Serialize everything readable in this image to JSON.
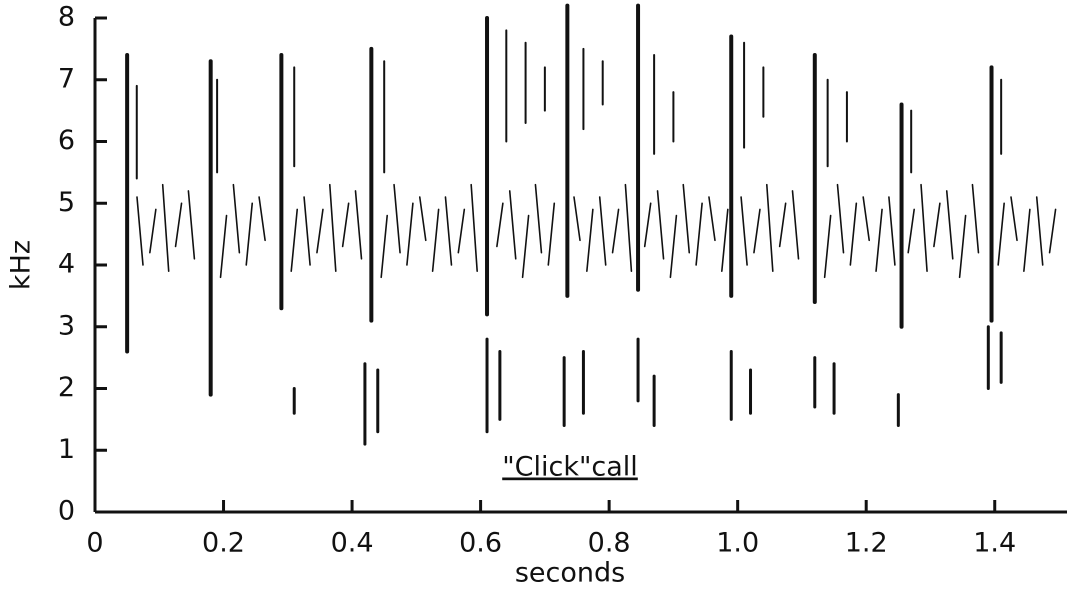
{
  "chart_data": {
    "type": "spectrogram",
    "xlabel": "seconds",
    "ylabel": "kHz",
    "annotation": "\"Click\"call",
    "xlim": [
      0,
      1.5
    ],
    "ylim": [
      0,
      8
    ],
    "xticks": [
      0,
      0.2,
      0.4,
      0.6,
      0.8,
      {
        "value": 1,
        "label": "1.0"
      },
      1.2,
      1.4
    ],
    "yticks": [
      0,
      1,
      2,
      3,
      4,
      5,
      6,
      7,
      8
    ],
    "color": "#111111",
    "series": [
      {
        "x": [
          0.05,
          0.18,
          0.29,
          0.43,
          0.61,
          0.735,
          0.845,
          0.99,
          1.12,
          1.255,
          1.395
        ],
        "low": [
          2.6,
          1.9,
          3.3,
          3.1,
          3.2,
          3.5,
          3.6,
          3.5,
          3.4,
          3.0,
          3.1
        ],
        "high": [
          7.4,
          7.3,
          7.4,
          7.5,
          8.0,
          8.2,
          8.2,
          7.7,
          7.4,
          6.6,
          7.2
        ]
      },
      {
        "x": [
          0.05,
          0.18,
          0.31,
          0.42,
          0.44,
          0.61,
          0.63,
          0.73,
          0.76,
          0.845,
          0.87,
          0.99,
          1.02,
          1.12,
          1.15,
          1.25,
          1.39,
          1.41
        ],
        "low": [
          2.7,
          1.9,
          1.6,
          1.1,
          1.3,
          1.3,
          1.5,
          1.4,
          1.6,
          1.8,
          1.4,
          1.5,
          1.6,
          1.7,
          1.6,
          1.4,
          2.0,
          2.1
        ],
        "high": [
          3.2,
          2.8,
          2.0,
          2.4,
          2.3,
          2.8,
          2.6,
          2.5,
          2.6,
          2.8,
          2.2,
          2.6,
          2.3,
          2.5,
          2.4,
          1.9,
          3.0,
          2.9
        ]
      },
      {
        "x": [
          0.065,
          0.19,
          0.31,
          0.45,
          0.64,
          0.67,
          0.7,
          0.76,
          0.79,
          0.87,
          0.9,
          1.01,
          1.04,
          1.14,
          1.17,
          1.27,
          1.41
        ],
        "low": [
          5.4,
          5.5,
          5.6,
          5.5,
          6.0,
          6.3,
          6.5,
          6.2,
          6.6,
          5.8,
          6.0,
          5.9,
          6.4,
          5.6,
          6.0,
          5.5,
          5.8
        ],
        "high": [
          6.9,
          7.0,
          7.2,
          7.3,
          7.8,
          7.6,
          7.2,
          7.5,
          7.3,
          7.4,
          6.8,
          7.6,
          7.2,
          7.0,
          6.8,
          6.5,
          7.0
        ]
      },
      {
        "x": [
          0.07,
          0.09,
          0.11,
          0.13,
          0.15,
          0.2,
          0.22,
          0.24,
          0.26,
          0.31,
          0.33,
          0.35,
          0.37,
          0.39,
          0.41,
          0.45,
          0.47,
          0.49,
          0.51,
          0.53,
          0.55,
          0.57,
          0.59,
          0.63,
          0.65,
          0.67,
          0.69,
          0.71,
          0.75,
          0.77,
          0.79,
          0.81,
          0.83,
          0.86,
          0.88,
          0.9,
          0.92,
          0.94,
          0.96,
          0.98,
          1.01,
          1.03,
          1.05,
          1.07,
          1.09,
          1.14,
          1.16,
          1.18,
          1.2,
          1.22,
          1.24,
          1.27,
          1.29,
          1.31,
          1.33,
          1.35,
          1.37,
          1.41,
          1.43,
          1.45,
          1.47,
          1.49
        ],
        "low": [
          4.0,
          4.2,
          3.9,
          4.3,
          4.1,
          3.8,
          4.2,
          4.0,
          4.4,
          3.9,
          4.0,
          4.2,
          3.9,
          4.3,
          4.1,
          3.8,
          4.2,
          4.0,
          4.4,
          3.9,
          4.0,
          4.2,
          3.9,
          4.3,
          4.1,
          3.8,
          4.2,
          4.0,
          4.4,
          3.9,
          4.0,
          4.2,
          3.9,
          4.3,
          4.1,
          3.8,
          4.2,
          4.0,
          4.4,
          3.9,
          4.0,
          4.2,
          3.9,
          4.3,
          4.1,
          3.8,
          4.2,
          4.0,
          4.4,
          3.9,
          4.0,
          4.2,
          3.9,
          4.3,
          4.1,
          3.8,
          4.2,
          4.0,
          4.4,
          3.9,
          4.0,
          4.2
        ],
        "high": [
          5.1,
          4.9,
          5.3,
          5.0,
          5.2,
          4.8,
          5.3,
          5.0,
          5.1,
          4.9,
          5.1,
          4.9,
          5.3,
          5.0,
          5.2,
          4.8,
          5.3,
          5.0,
          5.1,
          4.9,
          5.1,
          4.9,
          5.3,
          5.0,
          5.2,
          4.8,
          5.3,
          5.0,
          5.1,
          4.9,
          5.1,
          4.9,
          5.3,
          5.0,
          5.2,
          4.8,
          5.3,
          5.0,
          5.1,
          4.9,
          5.1,
          4.9,
          5.3,
          5.0,
          5.2,
          4.8,
          5.3,
          5.0,
          5.1,
          4.9,
          5.1,
          4.9,
          5.3,
          5.0,
          5.2,
          4.8,
          5.3,
          5.0,
          5.1,
          4.9,
          5.1,
          4.9
        ]
      }
    ]
  }
}
